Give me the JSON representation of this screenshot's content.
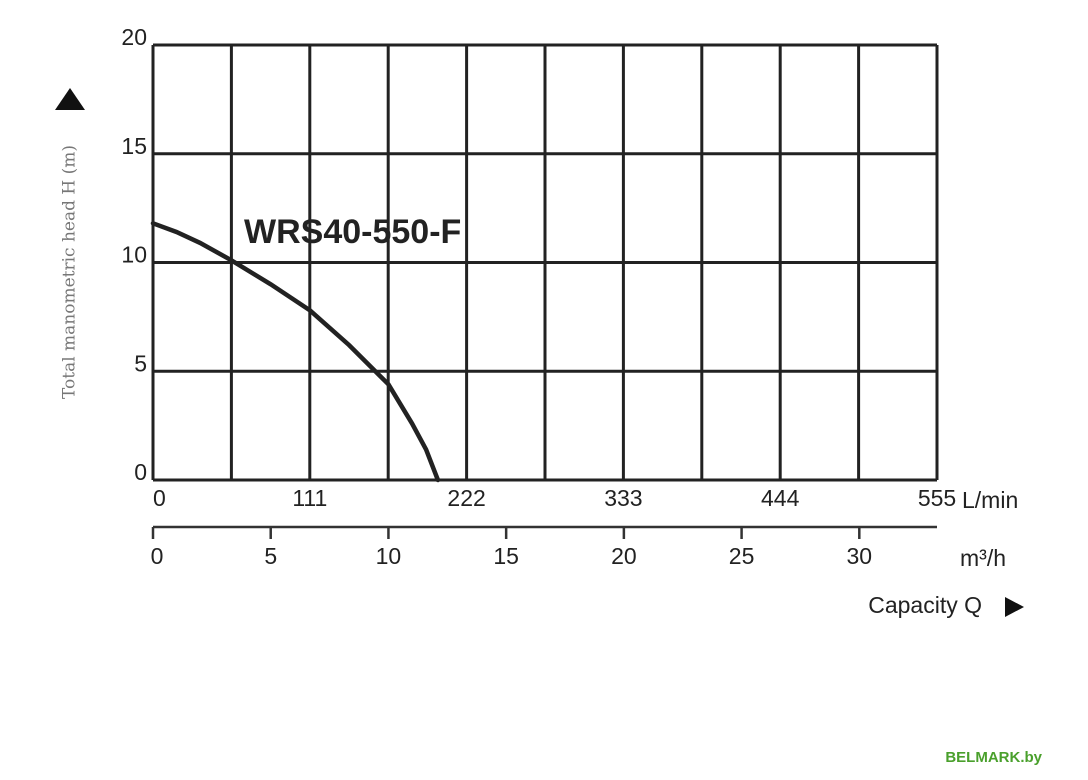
{
  "chart_data": {
    "type": "line",
    "y_label": "Total manometric head H (m)",
    "x_label": "Capacity Q",
    "x_unit": "m³/h",
    "x2_unit": "L/min",
    "annotation": "WRS40-550-F",
    "watermark": "BELMARK.by",
    "x": [
      0,
      1,
      2,
      3.33,
      5,
      6.67,
      8.33,
      10,
      11,
      11.6,
      12.1
    ],
    "series": [
      {
        "name": "WRS40-550-F",
        "color": "#222222",
        "values": [
          11.8,
          11.4,
          10.9,
          10.1,
          9.0,
          7.8,
          6.2,
          4.4,
          2.6,
          1.4,
          0
        ]
      }
    ],
    "xlim": [
      0,
      33.3
    ],
    "xticks": [
      0,
      5,
      10,
      15,
      20,
      25,
      30
    ],
    "x2lim": [
      0,
      555
    ],
    "x2ticks": [
      0,
      111,
      222,
      333,
      444,
      555
    ],
    "x2minor": [
      55.5,
      166.5,
      277.5,
      388.5,
      499.5
    ],
    "ylim": [
      0,
      20
    ],
    "yticks": [
      0,
      5,
      10,
      15,
      20
    ],
    "grid": true
  }
}
